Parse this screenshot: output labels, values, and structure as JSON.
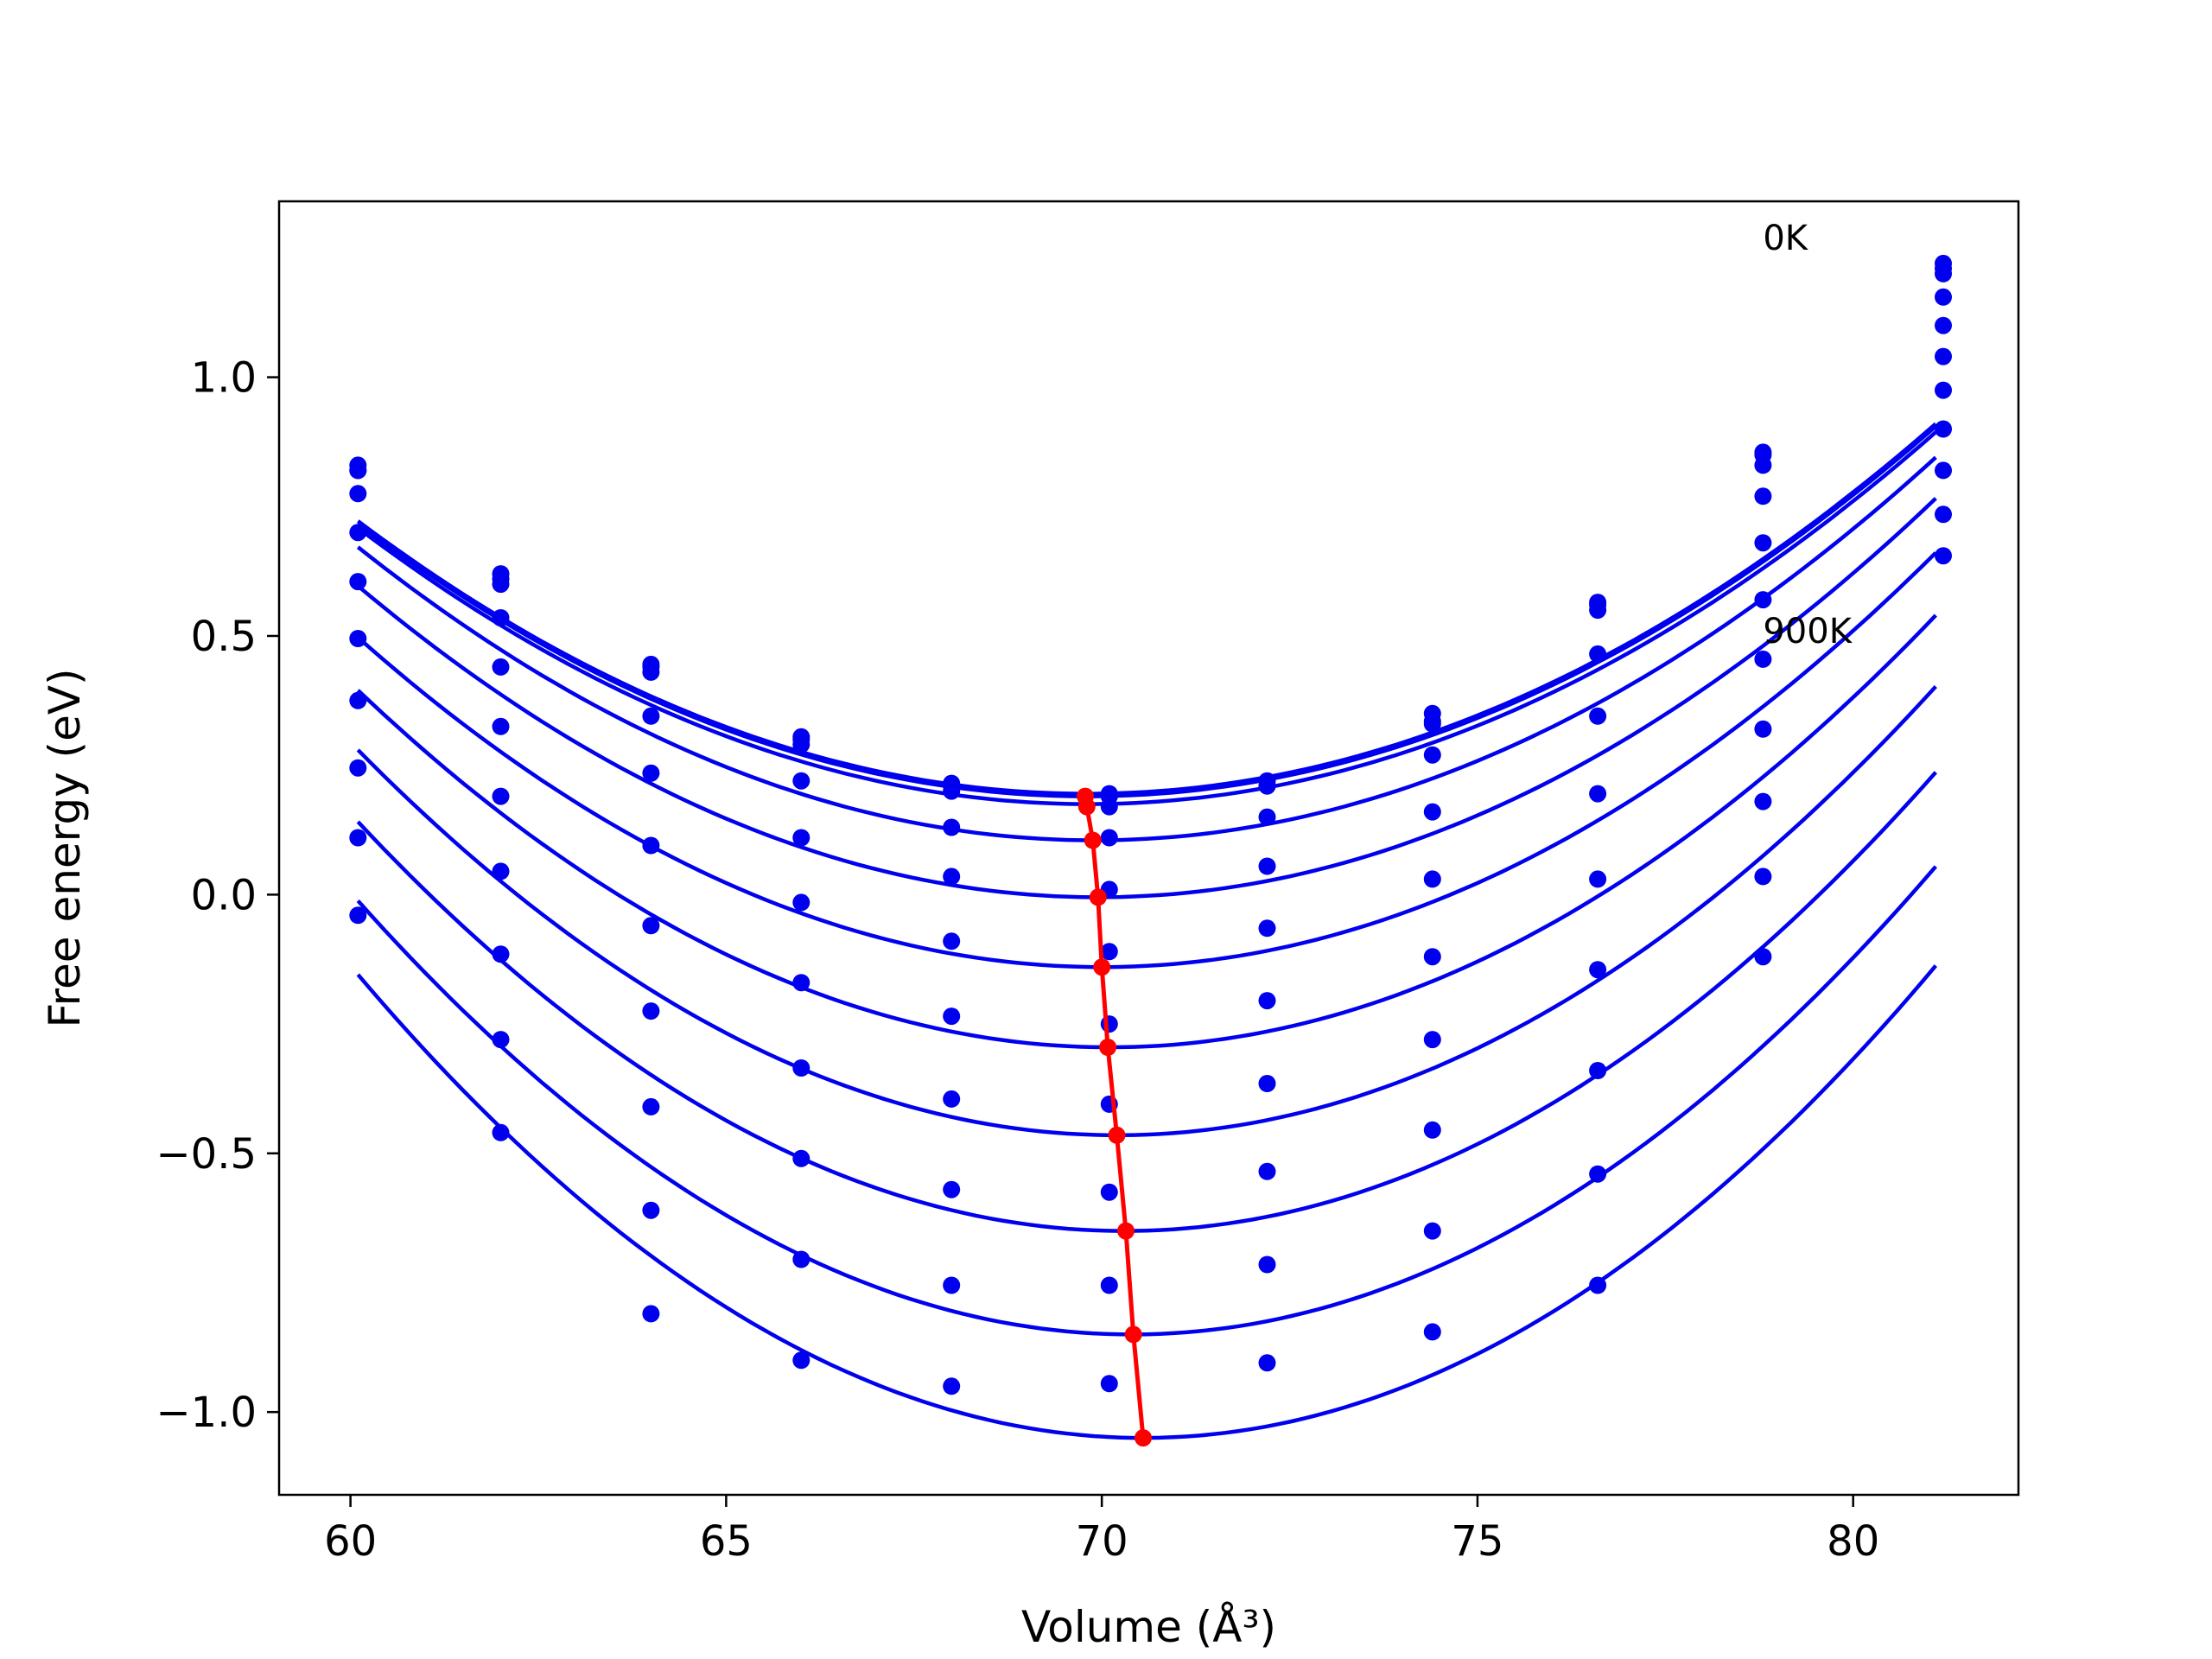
{
  "chart_data": {
    "type": "line",
    "title": "",
    "xlabel": "Volume (Å³)",
    "ylabel": "Free energy (eV)",
    "xlim": [
      59.05,
      82.2
    ],
    "ylim": [
      -1.16,
      1.34
    ],
    "xticks": [
      60,
      65,
      70,
      75,
      80
    ],
    "yticks": [
      -1.0,
      -0.5,
      0.0,
      0.5,
      1.0
    ],
    "xtick_labels": [
      "60",
      "65",
      "70",
      "75",
      "80"
    ],
    "ytick_labels": [
      "−1.0",
      "−0.5",
      "0.0",
      "0.5",
      "1.0"
    ],
    "grid": false,
    "legend": "none",
    "colors": {
      "curves": "#0000ee",
      "points": "#0000ee",
      "minimum_line": "#ff0000"
    },
    "annotations": [
      {
        "text": "0K",
        "x": 78.8,
        "y": 1.27
      },
      {
        "text": "900K",
        "x": 78.8,
        "y": 0.51
      }
    ],
    "x_points": [
      60.1,
      62.0,
      64.0,
      66.0,
      68.0,
      70.1,
      72.2,
      74.4,
      76.6,
      78.8,
      81.2
    ],
    "curve_x_range": [
      60.1,
      81.1
    ],
    "series": [
      {
        "points": [
          0.83,
          0.62,
          0.445,
          0.305,
          0.215,
          0.195,
          0.22,
          0.335,
          0.565,
          0.855,
          1.22
        ],
        "fit": {
          "vmin": 69.8,
          "fmin": 0.195,
          "k": 0.0056
        }
      },
      {
        "points": [
          0.82,
          0.61,
          0.44,
          0.3,
          0.21,
          0.19,
          0.21,
          0.35,
          0.56,
          0.85,
          1.21
        ],
        "fit": {
          "vmin": 69.8,
          "fmin": 0.19,
          "k": 0.0056
        }
      },
      {
        "points": [
          0.82,
          0.6,
          0.43,
          0.29,
          0.2,
          0.17,
          0.21,
          0.33,
          0.55,
          0.83,
          1.2
        ],
        "fit": {
          "vmin": 69.82,
          "fmin": 0.175,
          "k": 0.00565
        }
      },
      {
        "points": [
          0.775,
          0.535,
          0.345,
          0.22,
          0.13,
          0.11,
          0.15,
          0.27,
          0.465,
          0.77,
          1.155
        ],
        "fit": {
          "vmin": 69.9,
          "fmin": 0.105,
          "k": 0.0059
        }
      },
      {
        "points": [
          0.7,
          0.44,
          0.235,
          0.11,
          0.035,
          0.01,
          0.055,
          0.16,
          0.345,
          0.68,
          1.1
        ],
        "fit": {
          "vmin": 69.95,
          "fmin": -0.005,
          "k": 0.0062
        }
      },
      {
        "points": [
          0.605,
          0.325,
          0.095,
          -0.015,
          -0.09,
          -0.11,
          -0.065,
          0.03,
          0.195,
          0.57,
          1.04
        ],
        "fit": {
          "vmin": 70.0,
          "fmin": -0.14,
          "k": 0.0065
        }
      },
      {
        "points": [
          0.495,
          0.19,
          -0.06,
          -0.17,
          -0.235,
          -0.25,
          -0.205,
          -0.12,
          0.03,
          0.455,
          0.975
        ],
        "fit": {
          "vmin": 70.1,
          "fmin": -0.295,
          "k": 0.0069
        }
      },
      {
        "points": [
          0.375,
          0.045,
          -0.225,
          -0.335,
          -0.395,
          -0.405,
          -0.365,
          -0.28,
          -0.145,
          0.32,
          0.9
        ],
        "fit": {
          "vmin": 70.2,
          "fmin": -0.465,
          "k": 0.0073
        }
      },
      {
        "points": [
          0.245,
          -0.115,
          -0.41,
          -0.51,
          -0.57,
          -0.575,
          -0.535,
          -0.455,
          -0.34,
          0.18,
          0.82
        ],
        "fit": {
          "vmin": 70.3,
          "fmin": -0.65,
          "k": 0.0076
        }
      },
      {
        "points": [
          0.11,
          -0.28,
          -0.61,
          -0.705,
          -0.755,
          -0.755,
          -0.715,
          -0.65,
          -0.54,
          0.035,
          0.735
        ],
        "fit": {
          "vmin": 70.4,
          "fmin": -0.85,
          "k": 0.0079
        }
      },
      {
        "points": [
          -0.04,
          -0.46,
          -0.81,
          -0.9,
          -0.95,
          -0.945,
          -0.905,
          -0.845,
          -0.755,
          -0.12,
          0.655
        ],
        "fit": {
          "vmin": 70.55,
          "fmin": -1.05,
          "k": 0.0082
        }
      }
    ],
    "minimum_line": {
      "x": [
        69.78,
        69.8,
        69.88,
        69.95,
        70.0,
        70.08,
        70.2,
        70.32,
        70.42,
        70.55
      ],
      "y": [
        0.19,
        0.17,
        0.105,
        -0.005,
        -0.14,
        -0.295,
        -0.465,
        -0.65,
        -0.85,
        -1.05
      ]
    }
  }
}
